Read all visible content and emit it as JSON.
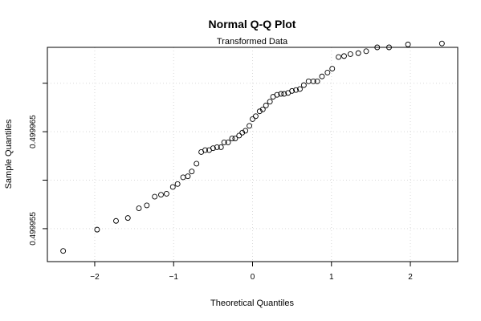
{
  "chart_data": {
    "type": "scatter",
    "title": "Normal Q-Q Plot",
    "subtitle": "Transformed Data",
    "xlabel": "Theoretical Quantiles",
    "ylabel": "Sample Quantiles",
    "xlim": [
      -2.6,
      2.6
    ],
    "ylim": [
      0.4999516,
      0.4999737
    ],
    "grid": true,
    "x_ticks": [
      -2,
      -1,
      0,
      1,
      2
    ],
    "x_tick_labels": [
      "−2",
      "−1",
      "0",
      "1",
      "2"
    ],
    "y_ticks": [
      0.499955,
      0.49996,
      0.499965,
      0.49997
    ],
    "y_tick_labels": [
      "0.499955",
      "",
      "0.499965",
      ""
    ],
    "points": {
      "x": [
        -2.4,
        -1.97,
        -1.73,
        -1.58,
        -1.44,
        -1.34,
        -1.24,
        -1.16,
        -1.09,
        -1.01,
        -0.95,
        -0.88,
        -0.82,
        -0.77,
        -0.71,
        -0.65,
        -0.6,
        -0.55,
        -0.5,
        -0.45,
        -0.4,
        -0.36,
        -0.31,
        -0.26,
        -0.22,
        -0.17,
        -0.13,
        -0.09,
        -0.04,
        0.0,
        0.04,
        0.09,
        0.13,
        0.17,
        0.22,
        0.26,
        0.31,
        0.36,
        0.4,
        0.45,
        0.5,
        0.55,
        0.6,
        0.65,
        0.71,
        0.77,
        0.82,
        0.88,
        0.95,
        1.01,
        1.09,
        1.16,
        1.24,
        1.34,
        1.44,
        1.58,
        1.73,
        1.97,
        2.4
      ],
      "y": [
        0.4999527,
        0.4999549,
        0.4999558,
        0.4999561,
        0.4999571,
        0.4999574,
        0.4999583,
        0.4999585,
        0.4999586,
        0.4999593,
        0.4999596,
        0.4999603,
        0.4999604,
        0.4999609,
        0.4999617,
        0.4999629,
        0.4999631,
        0.4999631,
        0.4999633,
        0.4999634,
        0.4999634,
        0.4999639,
        0.4999639,
        0.4999643,
        0.4999643,
        0.4999646,
        0.4999649,
        0.4999651,
        0.4999656,
        0.4999663,
        0.4999666,
        0.4999671,
        0.4999673,
        0.4999677,
        0.4999681,
        0.4999686,
        0.4999688,
        0.4999689,
        0.4999689,
        0.499969,
        0.4999692,
        0.4999693,
        0.4999694,
        0.4999698,
        0.4999702,
        0.4999702,
        0.4999702,
        0.4999707,
        0.4999711,
        0.4999715,
        0.4999727,
        0.4999728,
        0.499973,
        0.4999731,
        0.4999733,
        0.4999737,
        0.4999737,
        0.499974,
        0.4999741
      ]
    }
  }
}
